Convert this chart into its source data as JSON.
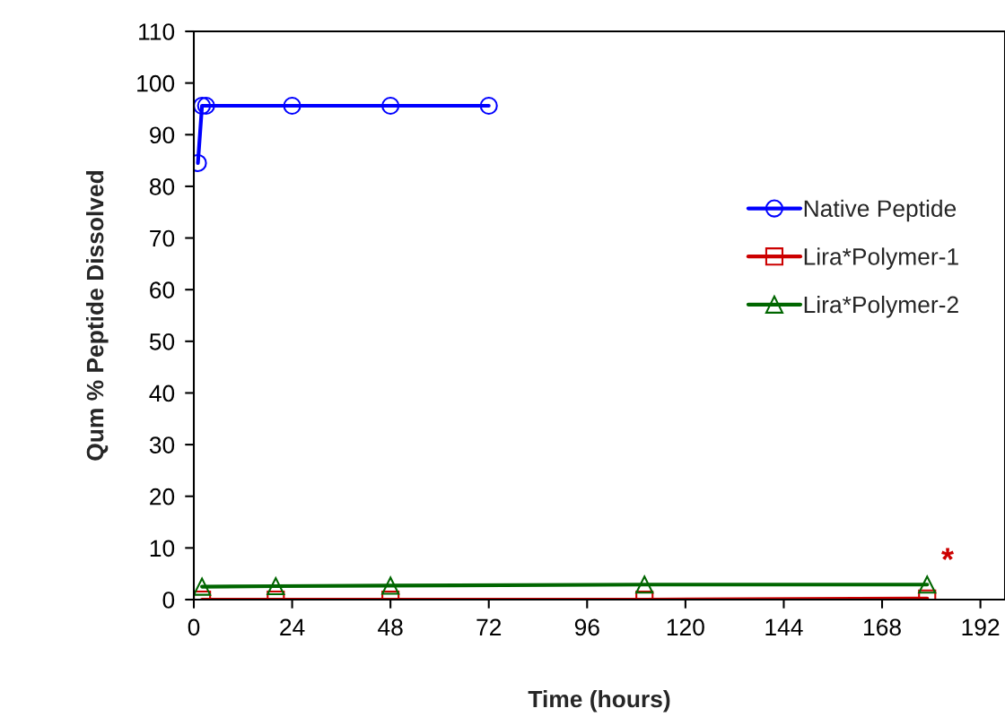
{
  "chart_data": {
    "type": "line",
    "xlabel": "Time (hours)",
    "ylabel": "Qum % Peptide Dissolved",
    "xlim": [
      0,
      198
    ],
    "xticks": [
      0,
      24,
      48,
      72,
      96,
      120,
      144,
      168,
      192
    ],
    "ylim": [
      0,
      110
    ],
    "yticks": [
      0,
      10,
      20,
      30,
      40,
      50,
      60,
      70,
      80,
      90,
      100,
      110
    ],
    "grid": false,
    "legend": "right",
    "line_style": "solid",
    "series": [
      {
        "name": "Native Peptide",
        "color": "#0000ff",
        "marker": "circle",
        "x": [
          1,
          2,
          3,
          24,
          48,
          72
        ],
        "values": [
          84.5,
          95.6,
          95.6,
          95.6,
          95.6,
          95.6
        ]
      },
      {
        "name": "Lira*Polymer-1",
        "color": "#cc0000",
        "marker": "square",
        "x": [
          2,
          20,
          48,
          110,
          179
        ],
        "values": [
          0,
          0,
          0,
          0,
          0.2
        ]
      },
      {
        "name": "Lira*Polymer-2",
        "color": "#006600",
        "marker": "triangle",
        "x": [
          2,
          20,
          48,
          110,
          179
        ],
        "values": [
          2.5,
          2.6,
          2.7,
          2.9,
          2.9
        ]
      }
    ],
    "annotations": [
      "*"
    ]
  }
}
